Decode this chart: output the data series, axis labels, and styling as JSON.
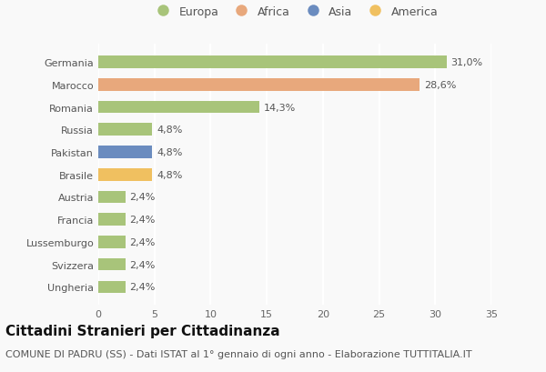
{
  "categories": [
    "Ungheria",
    "Svizzera",
    "Lussemburgo",
    "Francia",
    "Austria",
    "Brasile",
    "Pakistan",
    "Russia",
    "Romania",
    "Marocco",
    "Germania"
  ],
  "values": [
    2.4,
    2.4,
    2.4,
    2.4,
    2.4,
    4.8,
    4.8,
    4.8,
    14.3,
    28.6,
    31.0
  ],
  "labels": [
    "2,4%",
    "2,4%",
    "2,4%",
    "2,4%",
    "2,4%",
    "4,8%",
    "4,8%",
    "4,8%",
    "14,3%",
    "28,6%",
    "31,0%"
  ],
  "colors": [
    "#a8c47a",
    "#a8c47a",
    "#a8c47a",
    "#a8c47a",
    "#a8c47a",
    "#f0c060",
    "#6b8cbf",
    "#a8c47a",
    "#a8c47a",
    "#e8a87c",
    "#a8c47a"
  ],
  "legend_labels": [
    "Europa",
    "Africa",
    "Asia",
    "America"
  ],
  "legend_colors": [
    "#a8c47a",
    "#e8a87c",
    "#6b8cbf",
    "#f0c060"
  ],
  "title": "Cittadini Stranieri per Cittadinanza",
  "subtitle": "COMUNE DI PADRU (SS) - Dati ISTAT al 1° gennaio di ogni anno - Elaborazione TUTTITALIA.IT",
  "xlim": [
    0,
    35
  ],
  "xticks": [
    0,
    5,
    10,
    15,
    20,
    25,
    30,
    35
  ],
  "background_color": "#f9f9f9",
  "grid_color": "#ffffff",
  "bar_height": 0.55,
  "title_fontsize": 11,
  "subtitle_fontsize": 8,
  "label_fontsize": 8,
  "tick_fontsize": 8,
  "legend_fontsize": 9
}
